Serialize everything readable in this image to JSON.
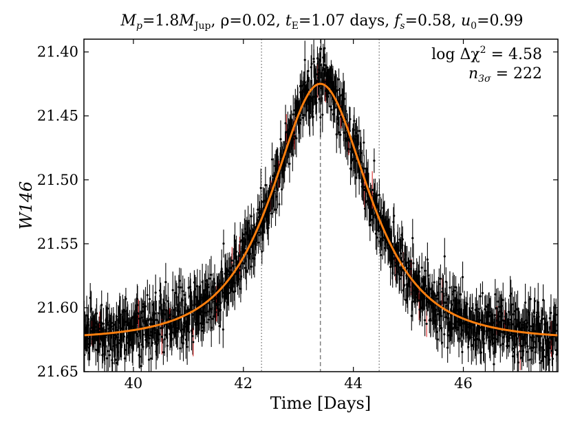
{
  "chart_data": {
    "type": "scatter",
    "title": {
      "mp": "M",
      "mp_sub": "p",
      "mp_eq": "=1.8",
      "mjup": "M",
      "mjup_sub": "Jup",
      "rho": ", ρ=0.02, ",
      "te": "t",
      "te_sub": "E",
      "te_eq": "=1.07 days, ",
      "fs": "f",
      "fs_sub": "s",
      "fs_eq": "=0.58, ",
      "u0": "u",
      "u0_sub": "0",
      "u0_eq": "=0.99"
    },
    "xlabel": "Time [Days]",
    "ylabel": "W146",
    "xlim": [
      39.1,
      47.72
    ],
    "ylim": [
      21.65,
      21.39
    ],
    "y_inverted": true,
    "x_ticks": [
      40,
      42,
      44,
      46
    ],
    "x_tick_labels": [
      "40",
      "42",
      "44",
      "46"
    ],
    "y_ticks": [
      21.4,
      21.45,
      21.5,
      21.55,
      21.6,
      21.65
    ],
    "y_tick_labels": [
      "21.40",
      "21.45",
      "21.50",
      "21.55",
      "21.60",
      "21.65"
    ],
    "annotation": {
      "chi_prefix": "log Δχ",
      "chi_sup": "2",
      "chi_value": " = 4.58",
      "n_prefix": "n",
      "n_sub": "3σ",
      "n_value": " = 222"
    },
    "model": {
      "name": "microlensing model",
      "t0": 43.4,
      "tE": 1.07,
      "u0": 0.99,
      "fs": 0.58,
      "baseline_mag": 21.625,
      "color": "#ff7f0e"
    },
    "vertical_lines": [
      {
        "name": "t0",
        "x": 43.4,
        "style": "dashed",
        "color": "#808080"
      },
      {
        "name": "t0-tE",
        "x": 42.33,
        "style": "dotted",
        "color": "#808080"
      },
      {
        "name": "t0+tE",
        "x": 44.47,
        "style": "dotted",
        "color": "#808080"
      }
    ],
    "series": [
      {
        "name": "data",
        "marker_color": "#000000",
        "errorbar_color": "#000000",
        "n_points": 1400,
        "scatter_sigma_mag": 0.011,
        "error_bar_mag": 0.012
      },
      {
        "name": "3σ outliers",
        "errorbar_color": "#d62728",
        "n_points": 222
      }
    ]
  }
}
